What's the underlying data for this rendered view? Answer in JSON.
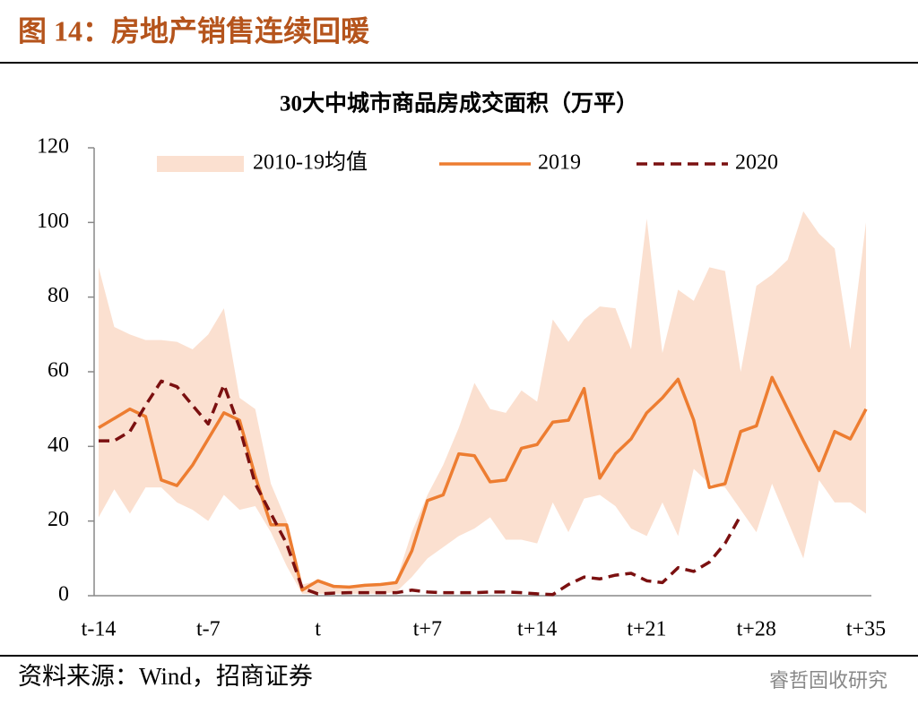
{
  "chart_data": {
    "type": "line",
    "figure_title": "图 14：房地产销售连续回暖",
    "title": "30大中城市商品房成交面积（万平）",
    "source": "资料来源：Wind，招商证券",
    "watermark": "睿哲固收研究",
    "categories": [
      "t-14",
      null,
      null,
      null,
      null,
      null,
      null,
      "t-7",
      null,
      null,
      null,
      null,
      null,
      null,
      "t",
      null,
      null,
      null,
      null,
      null,
      null,
      "t+7",
      null,
      null,
      null,
      null,
      null,
      null,
      "t+14",
      null,
      null,
      null,
      null,
      null,
      null,
      "t+21",
      null,
      null,
      null,
      null,
      null,
      null,
      "t+28",
      null,
      null,
      null,
      null,
      null,
      null,
      "t+35"
    ],
    "ylim": [
      0,
      120
    ],
    "yticks": [
      0,
      20,
      40,
      60,
      80,
      100,
      120
    ],
    "band": {
      "name": "2010-19均值",
      "color": "#fbe0d0",
      "upper": [
        88,
        72,
        70,
        68.5,
        68.5,
        68,
        66,
        70,
        77,
        53,
        50,
        30,
        20,
        3,
        4,
        3,
        2.5,
        3,
        3,
        4,
        17,
        27,
        35,
        45,
        57,
        50,
        49,
        55,
        52,
        74,
        68,
        74,
        77.5,
        77,
        66,
        101,
        65,
        82,
        79,
        88,
        87,
        60,
        83,
        86,
        90,
        103,
        97,
        93,
        66,
        100
      ],
      "lower": [
        21,
        28.5,
        22,
        29,
        29,
        25,
        23,
        20,
        27,
        23,
        24,
        17,
        8,
        0.5,
        0.5,
        0.5,
        0.5,
        0.5,
        0.5,
        1,
        5,
        10,
        13,
        16,
        18,
        21,
        15,
        15,
        14,
        25,
        17,
        26,
        27,
        24,
        18,
        16,
        25,
        16,
        34,
        30,
        29,
        23,
        17,
        30,
        20,
        10,
        31,
        25,
        25,
        22
      ]
    },
    "series": [
      {
        "name": "2019",
        "color": "#ed7d31",
        "dashed": false,
        "values": [
          45,
          47.5,
          50,
          48,
          31,
          29.5,
          35,
          42,
          49,
          47,
          32,
          19,
          19,
          1.5,
          4,
          2.5,
          2.3,
          2.8,
          3,
          3.5,
          12,
          25.5,
          27,
          38,
          37.5,
          30.5,
          31,
          39.5,
          40.5,
          46.5,
          47,
          55.5,
          31.5,
          38,
          42,
          49,
          53,
          58,
          47,
          29,
          30,
          44,
          45.5,
          58.5,
          50,
          41.5,
          33.5,
          44,
          42,
          50
        ]
      },
      {
        "name": "2020",
        "color": "#7b1010",
        "dashed": true,
        "values": [
          41.5,
          41.5,
          44,
          51,
          57.5,
          56,
          51,
          46,
          56.5,
          45,
          30,
          22,
          14,
          2,
          0.5,
          0.7,
          0.8,
          0.8,
          0.8,
          0.8,
          1.5,
          1,
          0.8,
          0.8,
          0.8,
          1,
          1,
          0.8,
          0.5,
          0.3,
          3,
          5,
          4.5,
          5.5,
          6,
          4,
          3.5,
          7.5,
          6.5,
          9,
          14,
          21.5,
          null,
          null,
          null,
          null,
          null,
          null,
          null,
          null
        ]
      }
    ]
  }
}
